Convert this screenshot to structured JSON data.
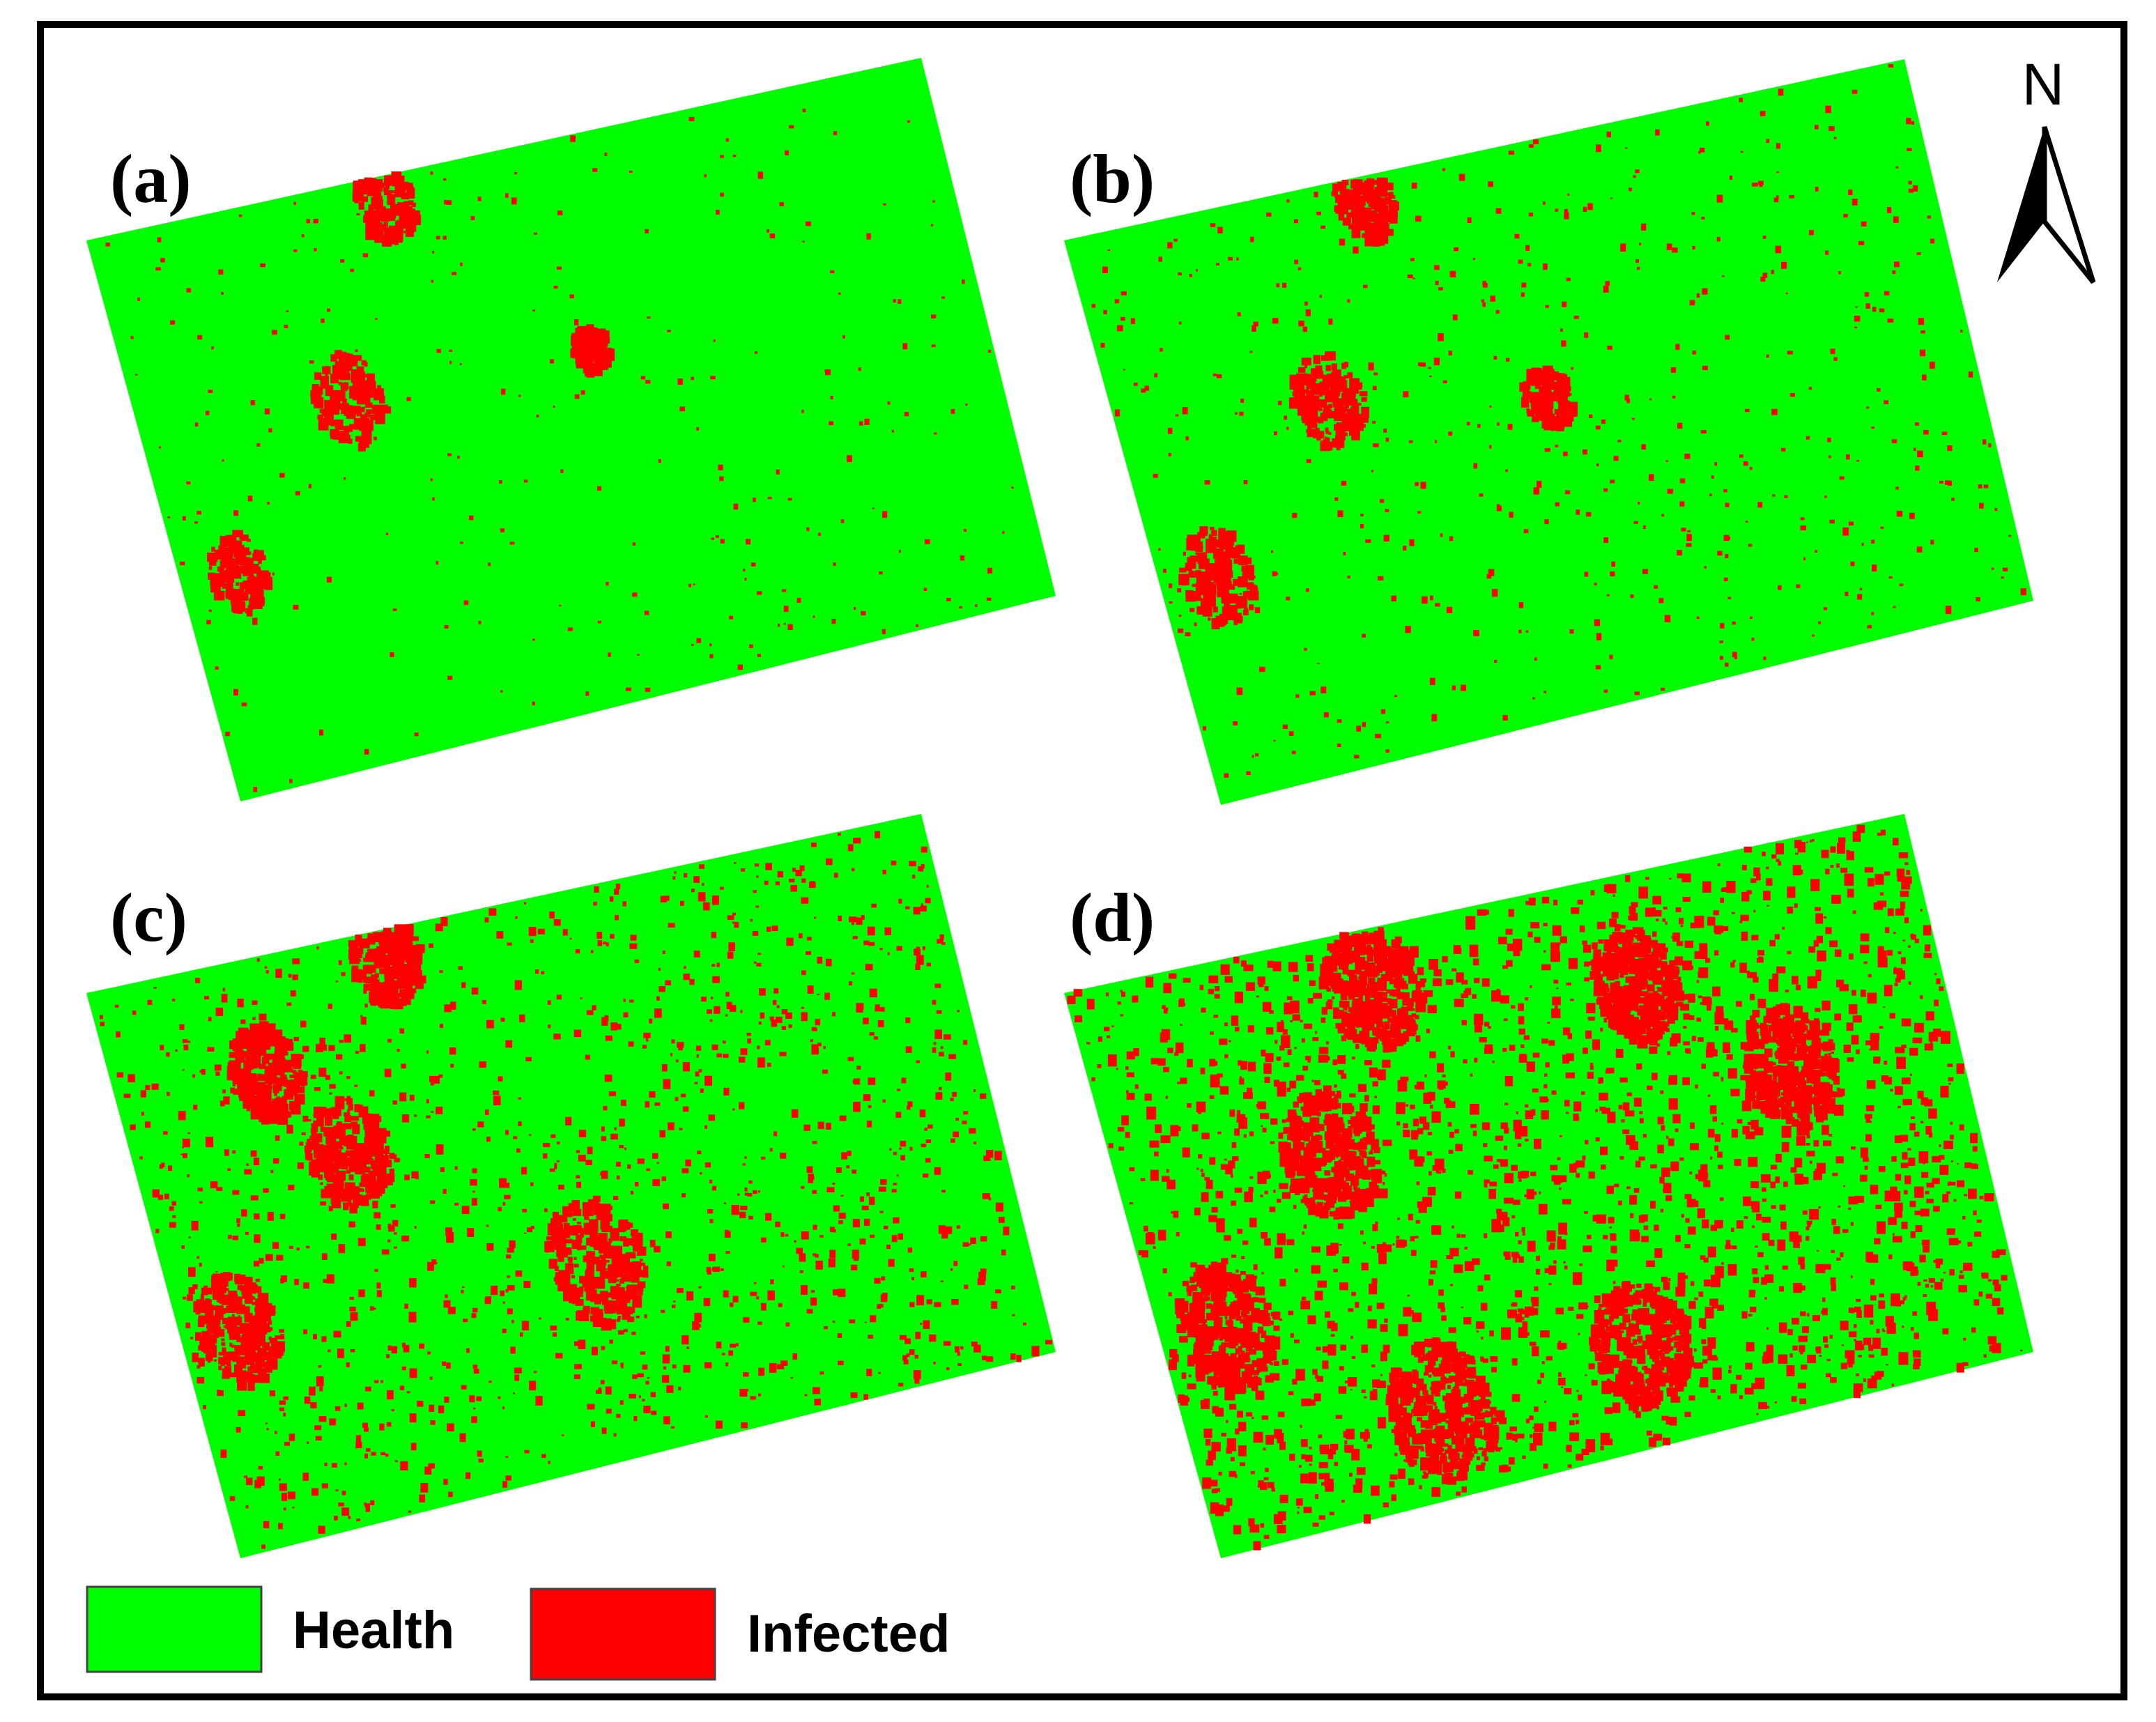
{
  "colors": {
    "health": "#00ff00",
    "infected": "#ff0000",
    "frame": "#000000",
    "background": "#ffffff"
  },
  "panels": [
    {
      "id": "a",
      "label": "(a)",
      "infected_level": 0.03
    },
    {
      "id": "b",
      "label": "(b)",
      "infected_level": 0.06
    },
    {
      "id": "c",
      "label": "(c)",
      "infected_level": 0.14
    },
    {
      "id": "d",
      "label": "(d)",
      "infected_level": 0.24
    }
  ],
  "legend": {
    "items": [
      {
        "name": "health",
        "label": "Health",
        "color": "#00ff00"
      },
      {
        "name": "infected",
        "label": "Infected",
        "color": "#ff0000"
      }
    ]
  },
  "north_arrow": {
    "label": "N",
    "icon": "north-arrow-icon"
  }
}
